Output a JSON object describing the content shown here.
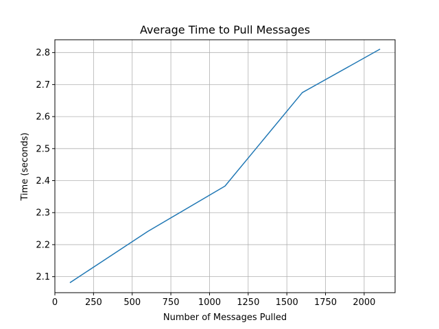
{
  "chart_data": {
    "type": "line",
    "title": "Average Time to Pull Messages",
    "xlabel": "Number of Messages Pulled",
    "ylabel": "Time (seconds)",
    "xlim": [
      0,
      2200
    ],
    "ylim": [
      2.05,
      2.84
    ],
    "xticks": [
      0,
      250,
      500,
      750,
      1000,
      1250,
      1500,
      1750,
      2000
    ],
    "xtick_labels": [
      "0",
      "250",
      "500",
      "750",
      "1000",
      "1250",
      "1500",
      "1750",
      "2000"
    ],
    "yticks": [
      2.1,
      2.2,
      2.3,
      2.4,
      2.5,
      2.6,
      2.7,
      2.8
    ],
    "ytick_labels": [
      "2.1",
      "2.2",
      "2.3",
      "2.4",
      "2.5",
      "2.6",
      "2.7",
      "2.8"
    ],
    "grid": true,
    "series": [
      {
        "color": "#1f77b4",
        "x": [
          100,
          600,
          1100,
          1600,
          2100
        ],
        "y": [
          2.082,
          2.241,
          2.383,
          2.675,
          2.81
        ]
      }
    ]
  }
}
